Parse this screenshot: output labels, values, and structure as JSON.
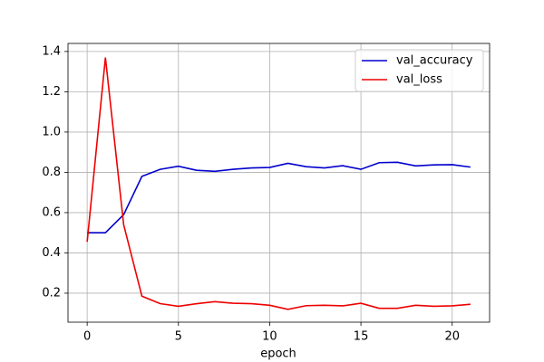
{
  "chart_data": {
    "type": "line",
    "x_label": "epoch",
    "x": [
      0,
      1,
      2,
      3,
      4,
      5,
      6,
      7,
      8,
      9,
      10,
      11,
      12,
      13,
      14,
      15,
      16,
      17,
      18,
      19,
      20,
      21
    ],
    "series": [
      {
        "name": "val_accuracy",
        "color": "#0000cc",
        "values": [
          0.5,
          0.5,
          0.59,
          0.78,
          0.815,
          0.83,
          0.81,
          0.805,
          0.815,
          0.822,
          0.824,
          0.845,
          0.828,
          0.822,
          0.833,
          0.815,
          0.848,
          0.85,
          0.832,
          0.837,
          0.838,
          0.826
        ]
      },
      {
        "name": "val_loss",
        "color": "#ee0000",
        "values": [
          0.455,
          1.37,
          0.54,
          0.185,
          0.148,
          0.135,
          0.148,
          0.158,
          0.15,
          0.148,
          0.14,
          0.12,
          0.138,
          0.14,
          0.137,
          0.15,
          0.125,
          0.125,
          0.14,
          0.135,
          0.137,
          0.145
        ]
      }
    ],
    "xlim": [
      -1.05,
      22.05
    ],
    "xticks": [
      0,
      5,
      10,
      15,
      20
    ],
    "ylim": [
      0.056,
      1.44
    ],
    "yticks": [
      0.2,
      0.4,
      0.6,
      0.8,
      {
        "value": 1.0,
        "label": "1.0"
      },
      1.2,
      1.4
    ],
    "grid": true,
    "legend": "upper right"
  }
}
